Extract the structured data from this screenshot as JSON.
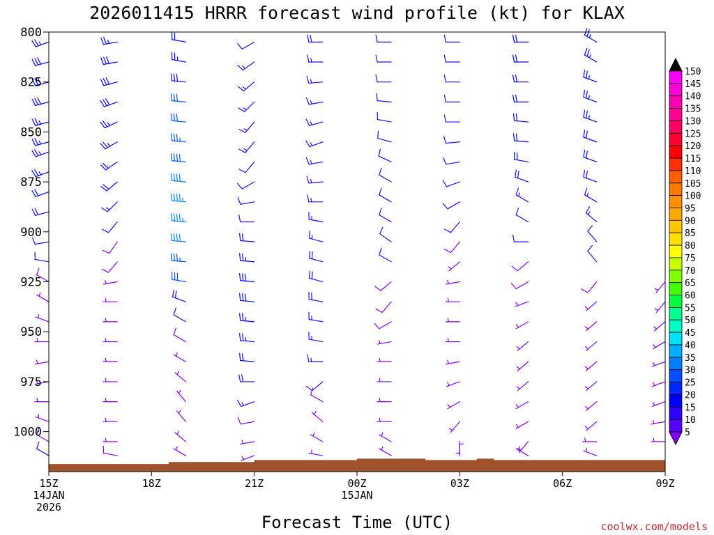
{
  "chart_data": {
    "type": "wind-barb-profile",
    "title": "2026011415 HRRR forecast wind profile (kt) for KLAX",
    "xlabel": "Forecast Time (UTC)",
    "ylabel": "",
    "credit": "coolwx.com/models",
    "y_axis": {
      "units": "hPa",
      "range": [
        800,
        1020
      ],
      "inverted": true,
      "ticks": [
        800,
        825,
        850,
        875,
        900,
        925,
        950,
        975,
        1000
      ]
    },
    "x_axis": {
      "range_hours": [
        0,
        18
      ],
      "ticks": [
        {
          "hour": 0,
          "lines": [
            "15Z",
            "14JAN",
            "2026"
          ]
        },
        {
          "hour": 3,
          "lines": [
            "18Z"
          ]
        },
        {
          "hour": 6,
          "lines": [
            "21Z"
          ]
        },
        {
          "hour": 9,
          "lines": [
            "00Z",
            "15JAN"
          ]
        },
        {
          "hour": 12,
          "lines": [
            "03Z"
          ]
        },
        {
          "hour": 15,
          "lines": [
            "06Z"
          ]
        },
        {
          "hour": 18,
          "lines": [
            "09Z"
          ]
        }
      ]
    },
    "colorbar": {
      "units": "kt",
      "labels": [
        "150",
        "145",
        "140",
        "135",
        "130",
        "125",
        "120",
        "115",
        "110",
        "105",
        "100",
        "95",
        "90",
        "85",
        "80",
        "75",
        "70",
        "65",
        "60",
        "55",
        "50",
        "45",
        "40",
        "35",
        "30",
        "25",
        "20",
        "15",
        "10",
        "5"
      ],
      "colors": [
        "#ff00ff",
        "#ff00d8",
        "#ff00b4",
        "#ff0090",
        "#ff0060",
        "#ff0030",
        "#ff0000",
        "#ff3000",
        "#ff6000",
        "#ff7800",
        "#ff9000",
        "#ffa800",
        "#ffc800",
        "#ffe000",
        "#ffff00",
        "#c8ff00",
        "#80ff00",
        "#40ff00",
        "#00ff40",
        "#00ff90",
        "#00ffc8",
        "#00e0ff",
        "#00b0ff",
        "#0080ff",
        "#0050ff",
        "#0028ff",
        "#0000ff",
        "#3000ff",
        "#5800ff",
        "#8000ff"
      ]
    },
    "terrain_color": "#a0522d",
    "surface_pressure": [
      {
        "hour": 0,
        "p": 1016.2
      },
      {
        "hour": 3.5,
        "p": 1015.2
      },
      {
        "hour": 6,
        "p": 1014.2
      },
      {
        "hour": 9,
        "p": 1013.5
      },
      {
        "hour": 11,
        "p": 1014.2
      },
      {
        "hour": 12.5,
        "p": 1013.5
      },
      {
        "hour": 13,
        "p": 1014.2
      },
      {
        "hour": 18,
        "p": 1013.5
      }
    ],
    "barb_colors": {
      "lt10": "#8000ff",
      "lt20": "#3000ff",
      "lt30": "#0000ff",
      "lt40": "#0050ff",
      "ge40": "#0080ff"
    },
    "columns": [
      {
        "hour": 0,
        "levels": [
          [
            805,
            250,
            27
          ],
          [
            815,
            255,
            28
          ],
          [
            825,
            255,
            28
          ],
          [
            835,
            255,
            28
          ],
          [
            845,
            255,
            27
          ],
          [
            855,
            255,
            27
          ],
          [
            860,
            250,
            25
          ],
          [
            870,
            250,
            25
          ],
          [
            880,
            250,
            20
          ],
          [
            890,
            255,
            18
          ],
          [
            905,
            260,
            12
          ],
          [
            915,
            280,
            10
          ],
          [
            925,
            300,
            8
          ],
          [
            935,
            300,
            6
          ],
          [
            945,
            290,
            6
          ],
          [
            955,
            270,
            6
          ],
          [
            965,
            260,
            6
          ],
          [
            975,
            260,
            6
          ],
          [
            985,
            270,
            6
          ],
          [
            995,
            290,
            6
          ],
          [
            1005,
            300,
            8
          ],
          [
            1012,
            300,
            10
          ]
        ]
      },
      {
        "hour": 2,
        "levels": [
          [
            805,
            260,
            27
          ],
          [
            815,
            260,
            28
          ],
          [
            825,
            255,
            28
          ],
          [
            835,
            250,
            28
          ],
          [
            845,
            245,
            27
          ],
          [
            855,
            240,
            25
          ],
          [
            865,
            235,
            22
          ],
          [
            875,
            230,
            18
          ],
          [
            885,
            225,
            14
          ],
          [
            895,
            220,
            10
          ],
          [
            905,
            215,
            8
          ],
          [
            915,
            220,
            8
          ],
          [
            925,
            260,
            6
          ],
          [
            935,
            270,
            6
          ],
          [
            945,
            270,
            6
          ],
          [
            955,
            270,
            6
          ],
          [
            965,
            270,
            6
          ],
          [
            975,
            270,
            6
          ],
          [
            985,
            270,
            6
          ],
          [
            995,
            270,
            6
          ],
          [
            1005,
            270,
            6
          ],
          [
            1012,
            280,
            8
          ]
        ]
      },
      {
        "hour": 4,
        "levels": [
          [
            805,
            280,
            22
          ],
          [
            815,
            280,
            25
          ],
          [
            825,
            275,
            28
          ],
          [
            835,
            275,
            30
          ],
          [
            845,
            275,
            32
          ],
          [
            855,
            275,
            35
          ],
          [
            865,
            275,
            38
          ],
          [
            875,
            275,
            42
          ],
          [
            885,
            275,
            45
          ],
          [
            895,
            275,
            45
          ],
          [
            905,
            275,
            40
          ],
          [
            915,
            275,
            35
          ],
          [
            925,
            280,
            30
          ],
          [
            935,
            290,
            18
          ],
          [
            945,
            300,
            10
          ],
          [
            955,
            300,
            8
          ],
          [
            965,
            300,
            6
          ],
          [
            975,
            310,
            6
          ],
          [
            985,
            320,
            6
          ],
          [
            995,
            320,
            6
          ],
          [
            1005,
            310,
            6
          ],
          [
            1012,
            300,
            6
          ]
        ]
      },
      {
        "hour": 6,
        "levels": [
          [
            805,
            240,
            12
          ],
          [
            815,
            235,
            14
          ],
          [
            825,
            230,
            15
          ],
          [
            835,
            225,
            16
          ],
          [
            845,
            220,
            16
          ],
          [
            855,
            220,
            14
          ],
          [
            865,
            220,
            12
          ],
          [
            875,
            240,
            10
          ],
          [
            885,
            260,
            10
          ],
          [
            895,
            270,
            12
          ],
          [
            905,
            275,
            20
          ],
          [
            915,
            275,
            25
          ],
          [
            925,
            275,
            28
          ],
          [
            935,
            275,
            28
          ],
          [
            945,
            275,
            27
          ],
          [
            955,
            275,
            25
          ],
          [
            965,
            275,
            22
          ],
          [
            975,
            270,
            18
          ],
          [
            985,
            250,
            14
          ],
          [
            995,
            260,
            8
          ],
          [
            1005,
            260,
            6
          ],
          [
            1012,
            250,
            6
          ]
        ]
      },
      {
        "hour": 8,
        "levels": [
          [
            805,
            270,
            18
          ],
          [
            815,
            270,
            17
          ],
          [
            825,
            265,
            16
          ],
          [
            835,
            260,
            15
          ],
          [
            845,
            255,
            14
          ],
          [
            855,
            250,
            13
          ],
          [
            865,
            260,
            13
          ],
          [
            875,
            265,
            14
          ],
          [
            885,
            270,
            15
          ],
          [
            895,
            280,
            15
          ],
          [
            905,
            285,
            16
          ],
          [
            915,
            285,
            18
          ],
          [
            925,
            285,
            18
          ],
          [
            935,
            280,
            18
          ],
          [
            945,
            280,
            17
          ],
          [
            955,
            280,
            15
          ],
          [
            965,
            270,
            14
          ],
          [
            975,
            230,
            12
          ],
          [
            985,
            300,
            8
          ],
          [
            995,
            310,
            6
          ],
          [
            1005,
            300,
            6
          ],
          [
            1012,
            280,
            6
          ]
        ]
      },
      {
        "hour": 10,
        "levels": [
          [
            805,
            270,
            10
          ],
          [
            815,
            270,
            10
          ],
          [
            825,
            270,
            10
          ],
          [
            835,
            275,
            10
          ],
          [
            845,
            280,
            10
          ],
          [
            855,
            285,
            10
          ],
          [
            865,
            295,
            10
          ],
          [
            875,
            300,
            10
          ],
          [
            885,
            300,
            10
          ],
          [
            895,
            300,
            10
          ],
          [
            905,
            305,
            10
          ],
          [
            915,
            300,
            10
          ],
          [
            925,
            230,
            8
          ],
          [
            935,
            220,
            8
          ],
          [
            945,
            240,
            8
          ],
          [
            955,
            260,
            6
          ],
          [
            965,
            270,
            6
          ],
          [
            975,
            270,
            6
          ],
          [
            985,
            270,
            6
          ],
          [
            995,
            270,
            6
          ],
          [
            1005,
            300,
            6
          ],
          [
            1012,
            300,
            6
          ]
        ]
      },
      {
        "hour": 12,
        "levels": [
          [
            805,
            270,
            12
          ],
          [
            815,
            270,
            12
          ],
          [
            825,
            270,
            12
          ],
          [
            835,
            270,
            12
          ],
          [
            845,
            270,
            12
          ],
          [
            855,
            265,
            12
          ],
          [
            865,
            260,
            12
          ],
          [
            875,
            250,
            12
          ],
          [
            885,
            240,
            12
          ],
          [
            895,
            220,
            10
          ],
          [
            905,
            220,
            8
          ],
          [
            915,
            230,
            6
          ],
          [
            925,
            260,
            6
          ],
          [
            935,
            270,
            6
          ],
          [
            945,
            270,
            6
          ],
          [
            955,
            270,
            6
          ],
          [
            965,
            260,
            6
          ],
          [
            975,
            250,
            6
          ],
          [
            985,
            240,
            6
          ],
          [
            995,
            220,
            6
          ],
          [
            1005,
            180,
            5
          ],
          [
            1012,
            360,
            5
          ]
        ]
      },
      {
        "hour": 14,
        "levels": [
          [
            805,
            270,
            22
          ],
          [
            815,
            270,
            22
          ],
          [
            825,
            270,
            22
          ],
          [
            835,
            270,
            22
          ],
          [
            845,
            275,
            22
          ],
          [
            855,
            275,
            22
          ],
          [
            865,
            280,
            20
          ],
          [
            875,
            290,
            18
          ],
          [
            885,
            300,
            14
          ],
          [
            895,
            300,
            12
          ],
          [
            905,
            270,
            10
          ],
          [
            915,
            230,
            8
          ],
          [
            925,
            240,
            8
          ],
          [
            935,
            250,
            6
          ],
          [
            945,
            240,
            6
          ],
          [
            955,
            230,
            6
          ],
          [
            965,
            230,
            6
          ],
          [
            975,
            230,
            6
          ],
          [
            985,
            240,
            6
          ],
          [
            995,
            240,
            6
          ],
          [
            1005,
            220,
            6
          ],
          [
            1012,
            300,
            6
          ]
        ]
      },
      {
        "hour": 16,
        "levels": [
          [
            805,
            300,
            24
          ],
          [
            815,
            300,
            24
          ],
          [
            825,
            290,
            26
          ],
          [
            835,
            290,
            26
          ],
          [
            845,
            290,
            24
          ],
          [
            855,
            290,
            22
          ],
          [
            865,
            290,
            20
          ],
          [
            875,
            290,
            18
          ],
          [
            885,
            300,
            16
          ],
          [
            895,
            310,
            14
          ],
          [
            905,
            320,
            12
          ],
          [
            915,
            320,
            10
          ],
          [
            925,
            220,
            8
          ],
          [
            935,
            230,
            6
          ],
          [
            945,
            230,
            6
          ],
          [
            955,
            230,
            6
          ],
          [
            965,
            230,
            6
          ],
          [
            975,
            230,
            6
          ],
          [
            985,
            230,
            6
          ],
          [
            995,
            230,
            6
          ],
          [
            1005,
            270,
            6
          ],
          [
            1012,
            290,
            6
          ]
        ]
      },
      {
        "hour": 18,
        "levels": [
          [
            925,
            220,
            6
          ],
          [
            935,
            220,
            6
          ],
          [
            945,
            230,
            6
          ],
          [
            955,
            240,
            6
          ],
          [
            965,
            250,
            6
          ],
          [
            975,
            250,
            6
          ],
          [
            985,
            250,
            6
          ],
          [
            995,
            260,
            6
          ],
          [
            1005,
            270,
            6
          ]
        ]
      }
    ]
  }
}
